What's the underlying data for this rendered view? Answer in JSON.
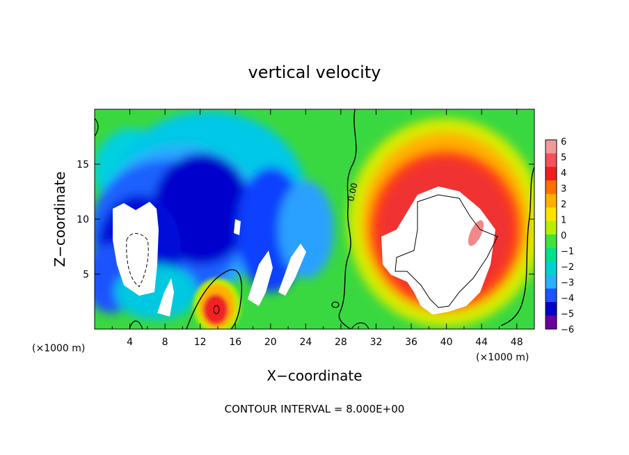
{
  "chart_data": {
    "type": "heatmap",
    "title": "vertical velocity",
    "xlabel": "X−coordinate",
    "ylabel": "Z−coordinate",
    "x_unit_label_left": "(×1000 m)",
    "x_unit_label_right": "(×1000 m)",
    "xlim": [
      0,
      50
    ],
    "ylim": [
      0,
      20
    ],
    "x_ticks": [
      4,
      8,
      12,
      16,
      20,
      24,
      28,
      32,
      36,
      40,
      44,
      48
    ],
    "y_ticks": [
      5,
      10,
      15
    ],
    "colorbar": {
      "min": -6,
      "max": 6,
      "ticks": [
        "6",
        "5",
        "4",
        "3",
        "2",
        "1",
        "0",
        "−1",
        "−2",
        "−3",
        "−4",
        "−5",
        "−6"
      ],
      "colors": [
        "#f29a9a",
        "#f4515a",
        "#f01d1d",
        "#ff6f00",
        "#ffb000",
        "#ffe400",
        "#b6f000",
        "#3fe23f",
        "#00e28a",
        "#00d2d2",
        "#29b0ff",
        "#1d53ff",
        "#0000c8",
        "#6a009e"
      ]
    },
    "contour_label": "0.00",
    "footer": "CONTOUR INTERVAL = 8.000E+00"
  }
}
